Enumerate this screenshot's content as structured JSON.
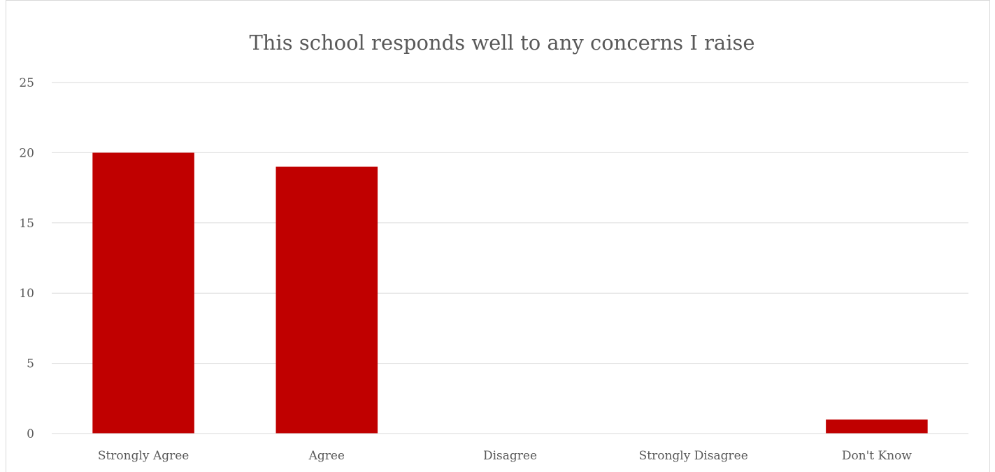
{
  "chart_data": {
    "type": "bar",
    "title": "This school responds well to any concerns I raise",
    "categories": [
      "Strongly Agree",
      "Agree",
      "Disagree",
      "Strongly Disagree",
      "Don't Know"
    ],
    "values": [
      20,
      19,
      0,
      0,
      1
    ],
    "xlabel": "",
    "ylabel": "",
    "ylim": [
      0,
      25
    ],
    "yticks": [
      0,
      5,
      10,
      15,
      20,
      25
    ],
    "grid": true,
    "legend": "none",
    "bar_color": "#c00000"
  }
}
